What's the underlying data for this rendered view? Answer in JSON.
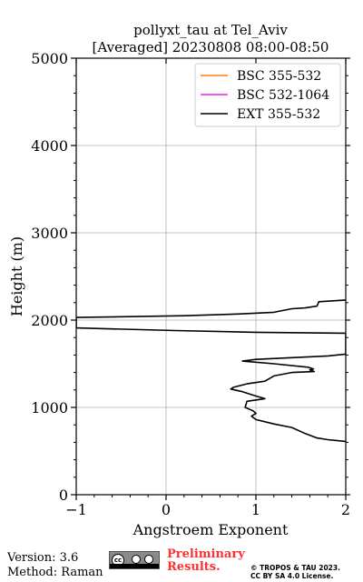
{
  "chart_data": {
    "type": "line",
    "title": [
      "pollyxt_tau at Tel_Aviv",
      "[Averaged] 20230808 08:00-08:50"
    ],
    "xlabel": "Angstroem Exponent",
    "ylabel": "Height (m)",
    "xlim": [
      -1,
      2
    ],
    "ylim": [
      0,
      5000
    ],
    "xticks": [
      -1,
      0,
      1,
      2
    ],
    "yticks": [
      0,
      1000,
      2000,
      3000,
      4000,
      5000
    ],
    "grid": true,
    "legend_position": "upper-right",
    "series": [
      {
        "name": "BSC 355-532",
        "color": "#ff7f0e",
        "points": []
      },
      {
        "name": "BSC 532-1064",
        "color": "#e024e0",
        "points": []
      },
      {
        "name": "EXT 355-532",
        "color": "#000000",
        "points": [
          [
            2.0,
            2230
          ],
          [
            1.7,
            2210
          ],
          [
            1.68,
            2160
          ],
          [
            1.55,
            2140
          ],
          [
            1.4,
            2130
          ],
          [
            1.2,
            2090
          ],
          [
            0.8,
            2070
          ],
          [
            0.2,
            2050
          ],
          [
            -1.0,
            2030
          ],
          [
            -1.0,
            1910
          ],
          [
            0.1,
            1880
          ],
          [
            1.0,
            1860
          ],
          [
            2.0,
            1850
          ],
          [
            2.0,
            1610
          ],
          [
            1.8,
            1590
          ],
          [
            1.4,
            1570
          ],
          [
            1.0,
            1550
          ],
          [
            0.85,
            1530
          ],
          [
            1.2,
            1500
          ],
          [
            1.58,
            1460
          ],
          [
            1.64,
            1440
          ],
          [
            1.6,
            1430
          ],
          [
            1.65,
            1410
          ],
          [
            1.4,
            1400
          ],
          [
            1.2,
            1360
          ],
          [
            1.1,
            1300
          ],
          [
            0.9,
            1270
          ],
          [
            0.75,
            1230
          ],
          [
            0.72,
            1210
          ],
          [
            0.85,
            1180
          ],
          [
            1.0,
            1130
          ],
          [
            1.1,
            1100
          ],
          [
            0.9,
            1070
          ],
          [
            0.88,
            1000
          ],
          [
            0.97,
            960
          ],
          [
            1.0,
            930
          ],
          [
            0.95,
            900
          ],
          [
            1.0,
            860
          ],
          [
            1.2,
            810
          ],
          [
            1.4,
            770
          ],
          [
            1.55,
            700
          ],
          [
            1.68,
            650
          ],
          [
            1.8,
            630
          ],
          [
            2.0,
            610
          ]
        ]
      }
    ]
  },
  "footer": {
    "version": "Version: 3.6",
    "method": "Method: Raman",
    "preliminary_line1": "Preliminary",
    "preliminary_line2": "Results.",
    "preliminary_color": "#ff3030",
    "copyright_line1": "© TROPOS & TAU 2023.",
    "copyright_line2": "CC BY SA 4.0 License.",
    "license_badge": {
      "icon": "cc-by-sa-badge",
      "label": "cc"
    }
  }
}
